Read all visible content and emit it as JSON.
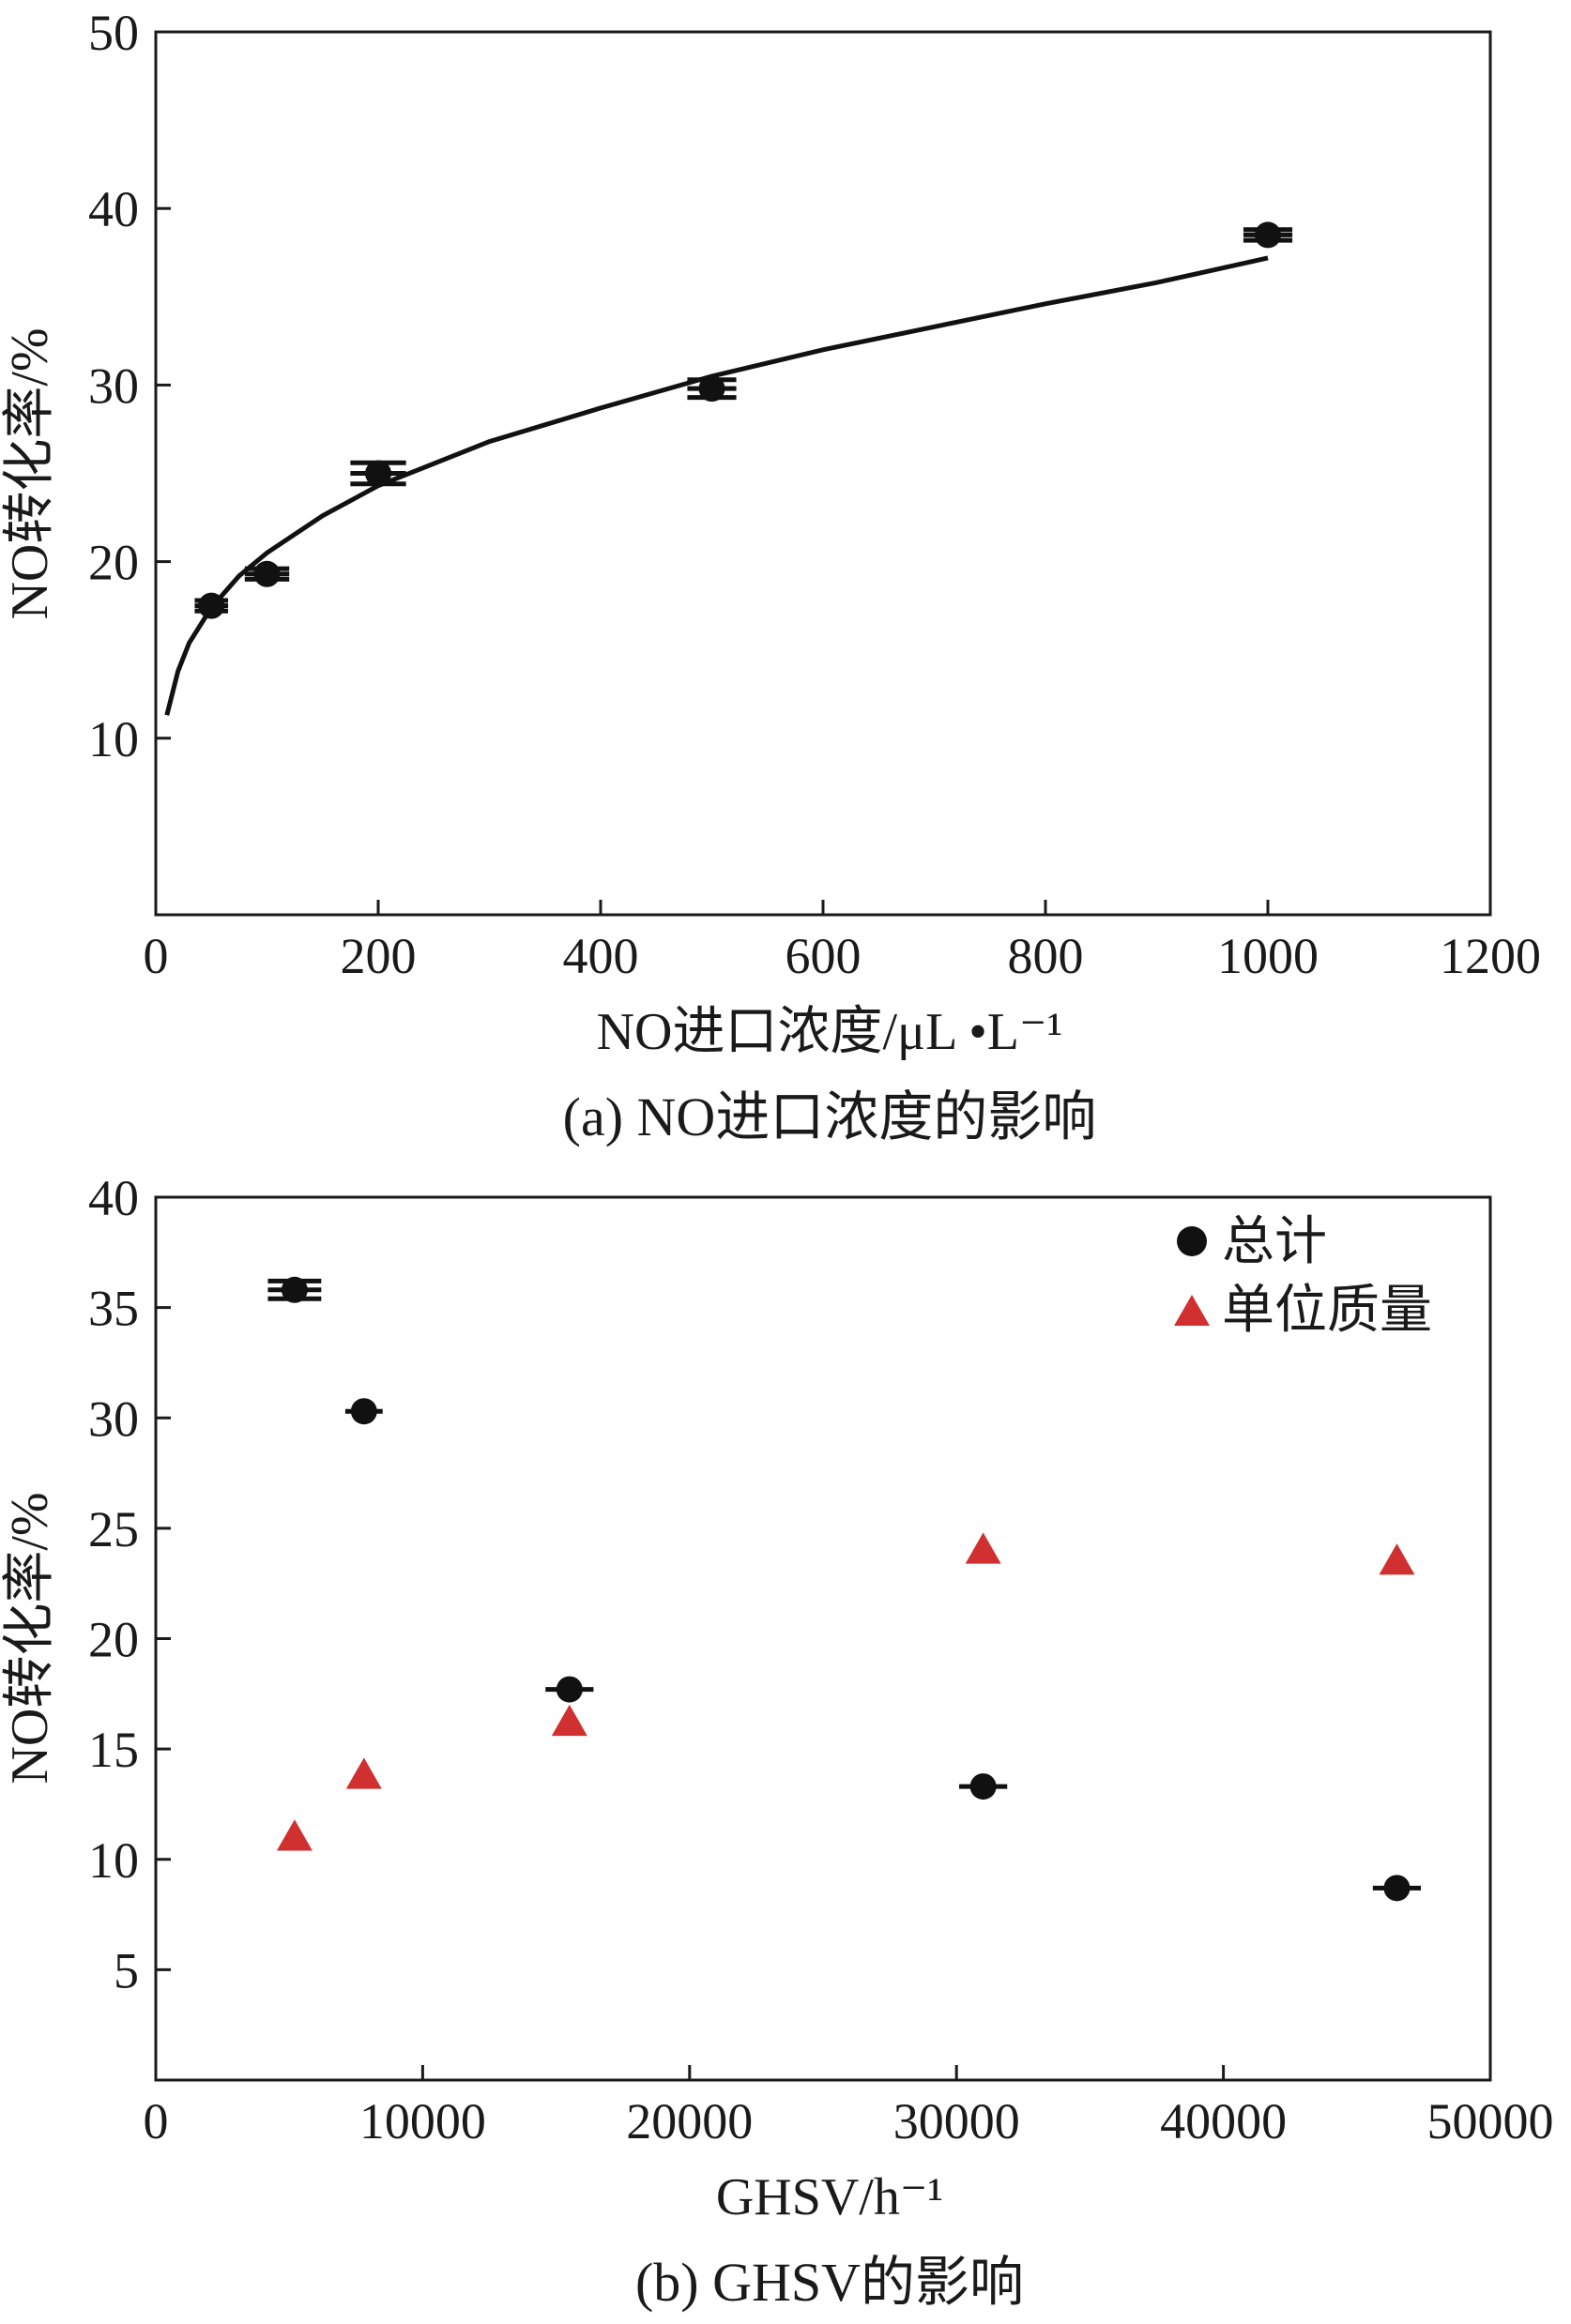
{
  "chart_data": [
    {
      "type": "scatter",
      "caption": "(a) NO进口浓度的影响",
      "xlabel": "NO进口浓度/μL •L⁻¹",
      "ylabel": "NO转化率/%",
      "xlim": [
        0,
        1200
      ],
      "ylim": [
        0,
        50
      ],
      "xticks": [
        0,
        200,
        400,
        600,
        800,
        1000,
        1200
      ],
      "yticks": [
        10,
        20,
        30,
        40,
        50
      ],
      "xtick_labels": [
        "0",
        "200",
        "400",
        "600",
        "800",
        "1000",
        "1200"
      ],
      "ytick_labels": [
        "10",
        "20",
        "30",
        "40",
        "50"
      ],
      "grid": false,
      "series": [
        {
          "marker": "circle",
          "color": "#111111",
          "x": [
            50,
            100,
            200,
            500,
            1000
          ],
          "y": [
            17.5,
            19.3,
            25.0,
            29.8,
            38.5
          ],
          "xerr": [
            15,
            20,
            25,
            22,
            22
          ],
          "yerr": [
            0.3,
            0.3,
            0.6,
            0.5,
            0.3
          ]
        }
      ],
      "fit_curve": {
        "color": "#111111",
        "x": [
          10,
          20,
          30,
          50,
          75,
          100,
          150,
          200,
          300,
          400,
          500,
          600,
          700,
          800,
          900,
          1000
        ],
        "y": [
          11.3,
          13.8,
          15.4,
          17.4,
          19.2,
          20.5,
          22.6,
          24.3,
          26.8,
          28.7,
          30.5,
          32.0,
          33.3,
          34.6,
          35.8,
          37.2
        ]
      }
    },
    {
      "type": "scatter",
      "caption": "(b) GHSV的影响",
      "xlabel": "GHSV/h⁻¹",
      "ylabel": "NO转化率/%",
      "xlim": [
        0,
        50000
      ],
      "ylim": [
        0,
        40
      ],
      "xticks": [
        0,
        10000,
        20000,
        30000,
        40000,
        50000
      ],
      "yticks": [
        5,
        10,
        15,
        20,
        25,
        30,
        35,
        40
      ],
      "xtick_labels": [
        "0",
        "10000",
        "20000",
        "30000",
        "40000",
        "50000"
      ],
      "ytick_labels": [
        "5",
        "10",
        "15",
        "20",
        "25",
        "30",
        "35",
        "40"
      ],
      "grid": false,
      "legend_position": "top-right",
      "series": [
        {
          "name": "总计",
          "marker": "circle",
          "color": "#111111",
          "x": [
            5200,
            7800,
            15500,
            31000,
            46500
          ],
          "y": [
            35.8,
            30.3,
            17.7,
            13.3,
            8.7
          ],
          "xerr": [
            1000,
            700,
            900,
            900,
            900
          ],
          "yerr": [
            0.4,
            0.1,
            0.1,
            0.1,
            0.1
          ]
        },
        {
          "name": "单位质量",
          "marker": "triangle",
          "color": "#d03030",
          "x": [
            5200,
            7800,
            15500,
            31000,
            46500
          ],
          "y": [
            11.0,
            13.8,
            16.2,
            24.0,
            23.5
          ]
        }
      ]
    }
  ]
}
